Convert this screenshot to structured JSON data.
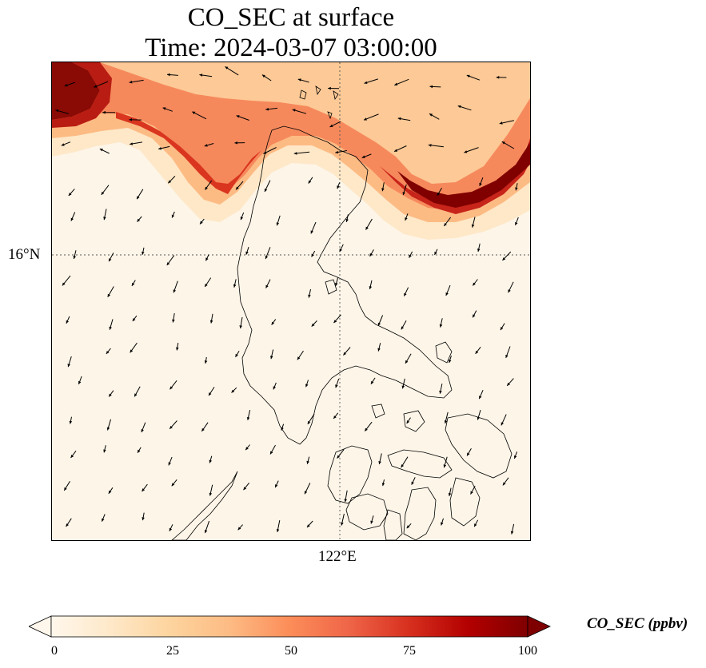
{
  "title": {
    "line1": "CO_SEC at surface",
    "line2": "Time: 2024-03-07 03:00:00"
  },
  "axes": {
    "lat_tick": "16°N",
    "lon_tick": "122°E",
    "gridlines": "dotted"
  },
  "colorbar": {
    "label": "CO_SEC (ppbv)",
    "ticks": [
      "0",
      "25",
      "50",
      "75",
      "100"
    ],
    "min": 0,
    "max": 100,
    "extend": "both",
    "colormap": "OrRd",
    "colors": [
      "#fff7ec",
      "#fee8c8",
      "#fdd49e",
      "#fdbb84",
      "#fc8d59",
      "#ef6548",
      "#d7301f",
      "#b30000",
      "#7f0000"
    ]
  },
  "map": {
    "field": "CO_SEC",
    "units": "ppbv",
    "wind_vectors": "black arrows",
    "coastline_color": "#000000",
    "high_concentration": "band across northern edge, peaking ~100 ppbv at top-left corner and north-east",
    "background_value": "~0 ppbv over southern domain"
  }
}
